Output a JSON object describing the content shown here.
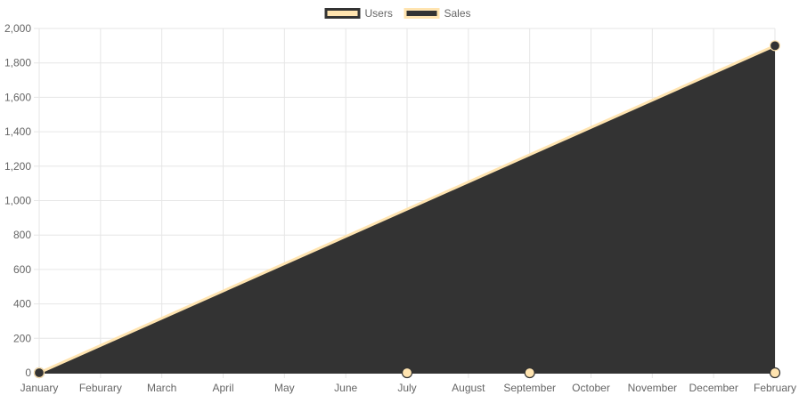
{
  "chart_data": {
    "type": "line",
    "categories": [
      "January",
      "Feburary",
      "March",
      "April",
      "May",
      "June",
      "July",
      "August",
      "September",
      "October",
      "November",
      "December",
      "February"
    ],
    "y_tick_labels": [
      "0",
      "200",
      "400",
      "600",
      "800",
      "1,000",
      "1,200",
      "1,400",
      "1,600",
      "1,800",
      "2,000"
    ],
    "ylim": [
      0,
      2000
    ],
    "grid": true,
    "legend_position": "top",
    "series": [
      {
        "name": "Users",
        "values": [
          0,
          null,
          null,
          null,
          null,
          null,
          0,
          null,
          0,
          null,
          null,
          null,
          0
        ],
        "fill": "#ffe4b0",
        "border": "#333333",
        "area": false
      },
      {
        "name": "Sales",
        "values": [
          0,
          null,
          null,
          null,
          null,
          null,
          null,
          null,
          null,
          null,
          null,
          null,
          1900
        ],
        "fill": "#333333",
        "border": "#ffe4b0",
        "area": true
      }
    ],
    "colors": {
      "grid": "#e6e6e6",
      "tick_text": "#666666"
    }
  }
}
